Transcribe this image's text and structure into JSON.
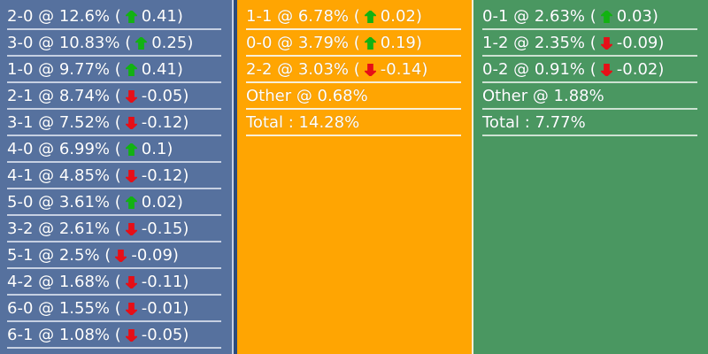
{
  "colors": {
    "page_background": "#2B4B7D",
    "text": "#FFFFFF",
    "up_arrow": "#12B212",
    "down_arrow": "#E60F17"
  },
  "board": {
    "columns": [
      {
        "key": "home",
        "name": "home-scores-column",
        "background": "#56719E",
        "divider": "#C6D0E2",
        "rows": [
          {
            "pre": "2-0 @ 12.6% (",
            "dir": "up",
            "post": "0.41)"
          },
          {
            "pre": "3-0 @ 10.83% (",
            "dir": "up",
            "post": "0.25)"
          },
          {
            "pre": "1-0 @ 9.77% (",
            "dir": "up",
            "post": "0.41)"
          },
          {
            "pre": "2-1 @ 8.74% (",
            "dir": "down",
            "post": "-0.05)"
          },
          {
            "pre": "3-1 @ 7.52% (",
            "dir": "down",
            "post": "-0.12)"
          },
          {
            "pre": "4-0 @ 6.99% (",
            "dir": "up",
            "post": "0.1)"
          },
          {
            "pre": "4-1 @ 4.85% (",
            "dir": "down",
            "post": "-0.12)"
          },
          {
            "pre": "5-0 @ 3.61% (",
            "dir": "up",
            "post": "0.02)"
          },
          {
            "pre": "3-2 @ 2.61% (",
            "dir": "down",
            "post": "-0.15)"
          },
          {
            "pre": "5-1 @ 2.5% (",
            "dir": "down",
            "post": "-0.09)"
          },
          {
            "pre": "4-2 @ 1.68% (",
            "dir": "down",
            "post": "-0.11)"
          },
          {
            "pre": "6-0 @ 1.55% (",
            "dir": "down",
            "post": "-0.01)"
          },
          {
            "pre": "6-1 @ 1.08% (",
            "dir": "down",
            "post": "-0.05)"
          }
        ]
      },
      {
        "key": "draw",
        "name": "draw-scores-column",
        "background": "#FFA502",
        "divider": "#F8EFD8",
        "rows": [
          {
            "pre": "1-1 @ 6.78% (",
            "dir": "up",
            "post": "0.02)"
          },
          {
            "pre": "0-0 @ 3.79% (",
            "dir": "up",
            "post": "0.19)"
          },
          {
            "pre": "2-2 @ 3.03% (",
            "dir": "down",
            "post": "-0.14)"
          },
          {
            "pre": "Other @ 0.68%"
          },
          {
            "pre": "Total : 14.28%"
          }
        ]
      },
      {
        "key": "away",
        "name": "away-scores-column",
        "background": "#4A9761",
        "divider": "#CDE2D2",
        "rows": [
          {
            "pre": "0-1 @ 2.63% (",
            "dir": "up",
            "post": "0.03)"
          },
          {
            "pre": "1-2 @ 2.35% (",
            "dir": "down",
            "post": "-0.09)"
          },
          {
            "pre": "0-2 @ 0.91% (",
            "dir": "down",
            "post": "-0.02)"
          },
          {
            "pre": "Other @ 1.88%"
          },
          {
            "pre": "Total : 7.77%"
          }
        ]
      }
    ]
  }
}
